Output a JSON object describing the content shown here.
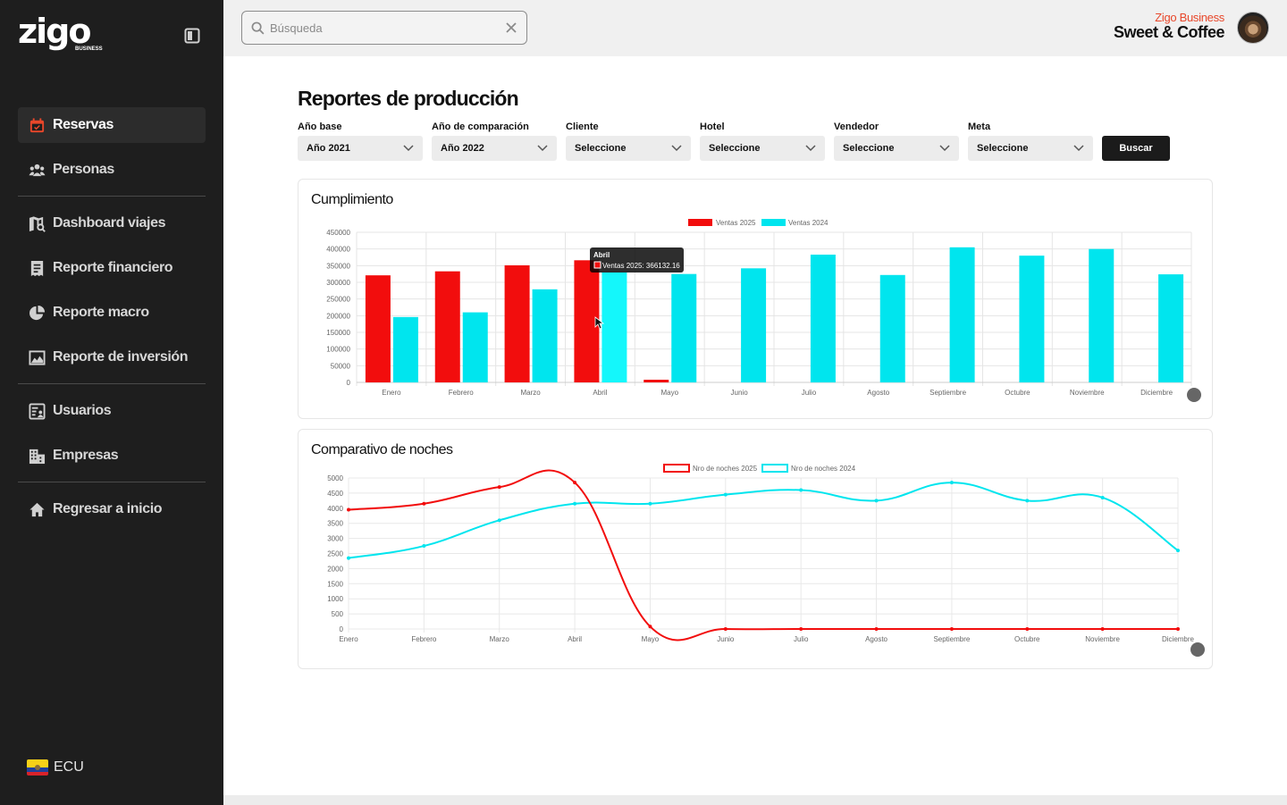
{
  "sidebar": {
    "logo_text": "zigo",
    "logo_sub": "BUSINESS",
    "items": [
      {
        "label": "Reservas"
      },
      {
        "label": "Personas"
      },
      {
        "label": "Dashboard viajes"
      },
      {
        "label": "Reporte financiero"
      },
      {
        "label": "Reporte macro"
      },
      {
        "label": "Reporte de inversión"
      },
      {
        "label": "Usuarios"
      },
      {
        "label": "Empresas"
      },
      {
        "label": "Regresar a inicio"
      }
    ],
    "country": "ECU"
  },
  "header": {
    "search_placeholder": "Búsqueda",
    "brand_sub": "Zigo Business",
    "brand_name": "Sweet & Coffee"
  },
  "page": {
    "title": "Reportes de producción",
    "filters": [
      {
        "label": "Año base",
        "value": "Año 2021"
      },
      {
        "label": "Año de comparación",
        "value": "Año 2022"
      },
      {
        "label": "Cliente",
        "value": "Seleccione"
      },
      {
        "label": "Hotel",
        "value": "Seleccione"
      },
      {
        "label": "Vendedor",
        "value": "Seleccione"
      },
      {
        "label": "Meta",
        "value": "Seleccione"
      }
    ],
    "search_button": "Buscar"
  },
  "colors": {
    "red": "#f20d0d",
    "cyan": "#00e5ee",
    "accent_orange": "#e8472a"
  },
  "chart_data": [
    {
      "type": "bar",
      "title": "Cumplimiento",
      "categories": [
        "Enero",
        "Febrero",
        "Marzo",
        "Abril",
        "Mayo",
        "Junio",
        "Julio",
        "Agosto",
        "Septiembre",
        "Octubre",
        "Noviembre",
        "Diciembre"
      ],
      "series": [
        {
          "name": "Ventas 2025",
          "values": [
            321000,
            333000,
            351000,
            366132.16,
            8000,
            0,
            0,
            0,
            0,
            0,
            0,
            0
          ]
        },
        {
          "name": "Ventas 2024",
          "values": [
            196000,
            210000,
            279000,
            330000,
            325000,
            342000,
            383000,
            322000,
            405000,
            380000,
            400000,
            324000
          ]
        }
      ],
      "ylim": [
        0,
        450000
      ],
      "yticks": [
        "450000",
        "400000",
        "350000",
        "300000",
        "250000",
        "200000",
        "150000",
        "100000",
        "50000",
        "0"
      ],
      "tooltip": {
        "title": "Abril",
        "label": "Ventas 2025: 366132.16"
      }
    },
    {
      "type": "line",
      "title": "Comparativo de noches",
      "categories": [
        "Enero",
        "Febrero",
        "Marzo",
        "Abril",
        "Mayo",
        "Junio",
        "Julio",
        "Agosto",
        "Septiembre",
        "Octubre",
        "Noviembre",
        "Diciembre"
      ],
      "series": [
        {
          "name": "Nro de noches 2025",
          "values": [
            3950,
            4150,
            4700,
            4850,
            80,
            0,
            0,
            0,
            0,
            0,
            0,
            0
          ]
        },
        {
          "name": "Nro de noches 2024",
          "values": [
            2350,
            2750,
            3600,
            4150,
            4150,
            4450,
            4600,
            4250,
            4850,
            4250,
            4350,
            2600
          ]
        }
      ],
      "ylim": [
        0,
        5000
      ],
      "yticks": [
        "5000",
        "4500",
        "4000",
        "3500",
        "3000",
        "2500",
        "2000",
        "1500",
        "1000",
        "500",
        "0"
      ]
    }
  ]
}
